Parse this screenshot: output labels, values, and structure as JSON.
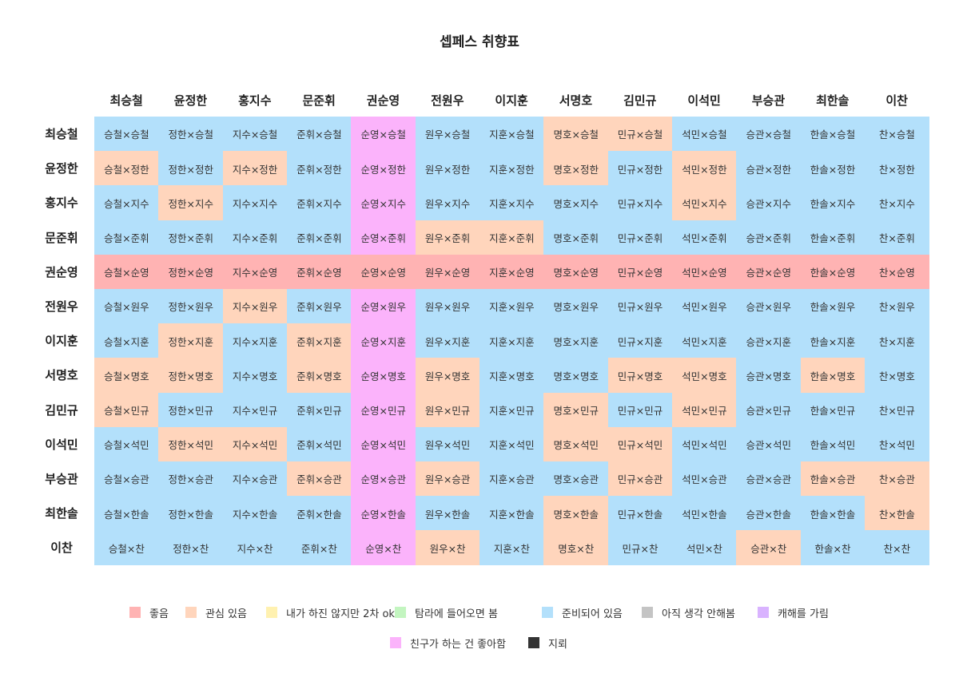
{
  "chart_data": {
    "type": "heatmap",
    "title": "셉페스 취향표",
    "columns": [
      "최승철",
      "윤정한",
      "홍지수",
      "문준휘",
      "권순영",
      "전원우",
      "이지훈",
      "서명호",
      "김민규",
      "이석민",
      "부승관",
      "최한솔",
      "이찬"
    ],
    "rows": [
      "최승철",
      "윤정한",
      "홍지수",
      "문준휘",
      "권순영",
      "전원우",
      "이지훈",
      "서명호",
      "김민규",
      "이석민",
      "부승관",
      "최한솔",
      "이찬"
    ],
    "cells": [
      [
        "승철×승철",
        "정한×승철",
        "지수×승철",
        "준휘×승철",
        "순영×승철",
        "원우×승철",
        "지훈×승철",
        "명호×승철",
        "민규×승철",
        "석민×승철",
        "승관×승철",
        "한솔×승철",
        "찬×승철"
      ],
      [
        "승철×정한",
        "정한×정한",
        "지수×정한",
        "준휘×정한",
        "순영×정한",
        "원우×정한",
        "지훈×정한",
        "명호×정한",
        "민규×정한",
        "석민×정한",
        "승관×정한",
        "한솔×정한",
        "찬×정한"
      ],
      [
        "승철×지수",
        "정한×지수",
        "지수×지수",
        "준휘×지수",
        "순영×지수",
        "원우×지수",
        "지훈×지수",
        "명호×지수",
        "민규×지수",
        "석민×지수",
        "승관×지수",
        "한솔×지수",
        "찬×지수"
      ],
      [
        "승철×준휘",
        "정한×준휘",
        "지수×준휘",
        "준휘×준휘",
        "순영×준휘",
        "원우×준휘",
        "지훈×준휘",
        "명호×준휘",
        "민규×준휘",
        "석민×준휘",
        "승관×준휘",
        "한솔×준휘",
        "찬×준휘"
      ],
      [
        "승철×순영",
        "정한×순영",
        "지수×순영",
        "준휘×순영",
        "순영×순영",
        "원우×순영",
        "지훈×순영",
        "명호×순영",
        "민규×순영",
        "석민×순영",
        "승관×순영",
        "한솔×순영",
        "찬×순영"
      ],
      [
        "승철×원우",
        "정한×원우",
        "지수×원우",
        "준휘×원우",
        "순영×원우",
        "원우×원우",
        "지훈×원우",
        "명호×원우",
        "민규×원우",
        "석민×원우",
        "승관×원우",
        "한솔×원우",
        "찬×원우"
      ],
      [
        "승철×지훈",
        "정한×지훈",
        "지수×지훈",
        "준휘×지훈",
        "순영×지훈",
        "원우×지훈",
        "지훈×지훈",
        "명호×지훈",
        "민규×지훈",
        "석민×지훈",
        "승관×지훈",
        "한솔×지훈",
        "찬×지훈"
      ],
      [
        "승철×명호",
        "정한×명호",
        "지수×명호",
        "준휘×명호",
        "순영×명호",
        "원우×명호",
        "지훈×명호",
        "명호×명호",
        "민규×명호",
        "석민×명호",
        "승관×명호",
        "한솔×명호",
        "찬×명호"
      ],
      [
        "승철×민규",
        "정한×민규",
        "지수×민규",
        "준휘×민규",
        "순영×민규",
        "원우×민규",
        "지훈×민규",
        "명호×민규",
        "민규×민규",
        "석민×민규",
        "승관×민규",
        "한솔×민규",
        "찬×민규"
      ],
      [
        "승철×석민",
        "정한×석민",
        "지수×석민",
        "준휘×석민",
        "순영×석민",
        "원우×석민",
        "지훈×석민",
        "명호×석민",
        "민규×석민",
        "석민×석민",
        "승관×석민",
        "한솔×석민",
        "찬×석민"
      ],
      [
        "승철×승관",
        "정한×승관",
        "지수×승관",
        "준휘×승관",
        "순영×승관",
        "원우×승관",
        "지훈×승관",
        "명호×승관",
        "민규×승관",
        "석민×승관",
        "승관×승관",
        "한솔×승관",
        "찬×승관"
      ],
      [
        "승철×한솔",
        "정한×한솔",
        "지수×한솔",
        "준휘×한솔",
        "순영×한솔",
        "원우×한솔",
        "지훈×한솔",
        "명호×한솔",
        "민규×한솔",
        "석민×한솔",
        "승관×한솔",
        "한솔×한솔",
        "찬×한솔"
      ],
      [
        "승철×찬",
        "정한×찬",
        "지수×찬",
        "준휘×찬",
        "순영×찬",
        "원우×찬",
        "지훈×찬",
        "명호×찬",
        "민규×찬",
        "석민×찬",
        "승관×찬",
        "한솔×찬",
        "찬×찬"
      ]
    ],
    "categories": [
      {
        "key": "like",
        "label": "좋음",
        "color": "#ffb3b3"
      },
      {
        "key": "interest",
        "label": "관심 있음",
        "color": "#ffd5bc"
      },
      {
        "key": "fanwork_ok",
        "label": "내가 하진 않지만 2차 ok",
        "color": "#fff1b0"
      },
      {
        "key": "will_view",
        "label": "탐라에 들어오면 봄",
        "color": "#c3f5c0"
      },
      {
        "key": "prepared",
        "label": "준비되어 있음",
        "color": "#b3e0fb"
      },
      {
        "key": "not_thought",
        "label": "아직 생각 안해봄",
        "color": "#c4c4c4"
      },
      {
        "key": "avoid",
        "label": "캐해를 가림",
        "color": "#d9b3ff"
      },
      {
        "key": "friend_likes",
        "label": "친구가 하는 건 좋아함",
        "color": "#fbb3fb"
      },
      {
        "key": "dislike",
        "label": "지뢰",
        "color": "#333333"
      }
    ],
    "values": [
      [
        "prepared",
        "prepared",
        "prepared",
        "prepared",
        "friend_likes",
        "prepared",
        "prepared",
        "interest",
        "interest",
        "prepared",
        "prepared",
        "prepared",
        "prepared"
      ],
      [
        "interest",
        "prepared",
        "interest",
        "prepared",
        "friend_likes",
        "prepared",
        "prepared",
        "interest",
        "prepared",
        "interest",
        "prepared",
        "prepared",
        "prepared"
      ],
      [
        "prepared",
        "interest",
        "prepared",
        "prepared",
        "friend_likes",
        "prepared",
        "prepared",
        "prepared",
        "prepared",
        "interest",
        "prepared",
        "prepared",
        "prepared"
      ],
      [
        "prepared",
        "prepared",
        "prepared",
        "prepared",
        "friend_likes",
        "interest",
        "interest",
        "prepared",
        "prepared",
        "prepared",
        "prepared",
        "prepared",
        "prepared"
      ],
      [
        "like",
        "like",
        "like",
        "like",
        "like",
        "like",
        "like",
        "like",
        "like",
        "like",
        "like",
        "like",
        "like"
      ],
      [
        "prepared",
        "prepared",
        "interest",
        "prepared",
        "friend_likes",
        "prepared",
        "prepared",
        "prepared",
        "prepared",
        "prepared",
        "prepared",
        "prepared",
        "prepared"
      ],
      [
        "prepared",
        "interest",
        "prepared",
        "interest",
        "friend_likes",
        "prepared",
        "prepared",
        "prepared",
        "prepared",
        "prepared",
        "prepared",
        "prepared",
        "prepared"
      ],
      [
        "interest",
        "interest",
        "prepared",
        "interest",
        "friend_likes",
        "interest",
        "prepared",
        "prepared",
        "interest",
        "interest",
        "prepared",
        "interest",
        "prepared"
      ],
      [
        "interest",
        "prepared",
        "prepared",
        "prepared",
        "friend_likes",
        "interest",
        "prepared",
        "interest",
        "prepared",
        "interest",
        "prepared",
        "prepared",
        "prepared"
      ],
      [
        "prepared",
        "interest",
        "interest",
        "prepared",
        "friend_likes",
        "prepared",
        "prepared",
        "interest",
        "interest",
        "prepared",
        "prepared",
        "prepared",
        "prepared"
      ],
      [
        "prepared",
        "prepared",
        "prepared",
        "interest",
        "friend_likes",
        "interest",
        "prepared",
        "prepared",
        "interest",
        "prepared",
        "prepared",
        "interest",
        "interest"
      ],
      [
        "prepared",
        "prepared",
        "prepared",
        "prepared",
        "friend_likes",
        "prepared",
        "prepared",
        "interest",
        "prepared",
        "prepared",
        "prepared",
        "prepared",
        "interest"
      ],
      [
        "prepared",
        "prepared",
        "prepared",
        "prepared",
        "friend_likes",
        "interest",
        "prepared",
        "interest",
        "prepared",
        "prepared",
        "interest",
        "prepared",
        "prepared"
      ]
    ],
    "legend": "bottom",
    "grid": false
  }
}
